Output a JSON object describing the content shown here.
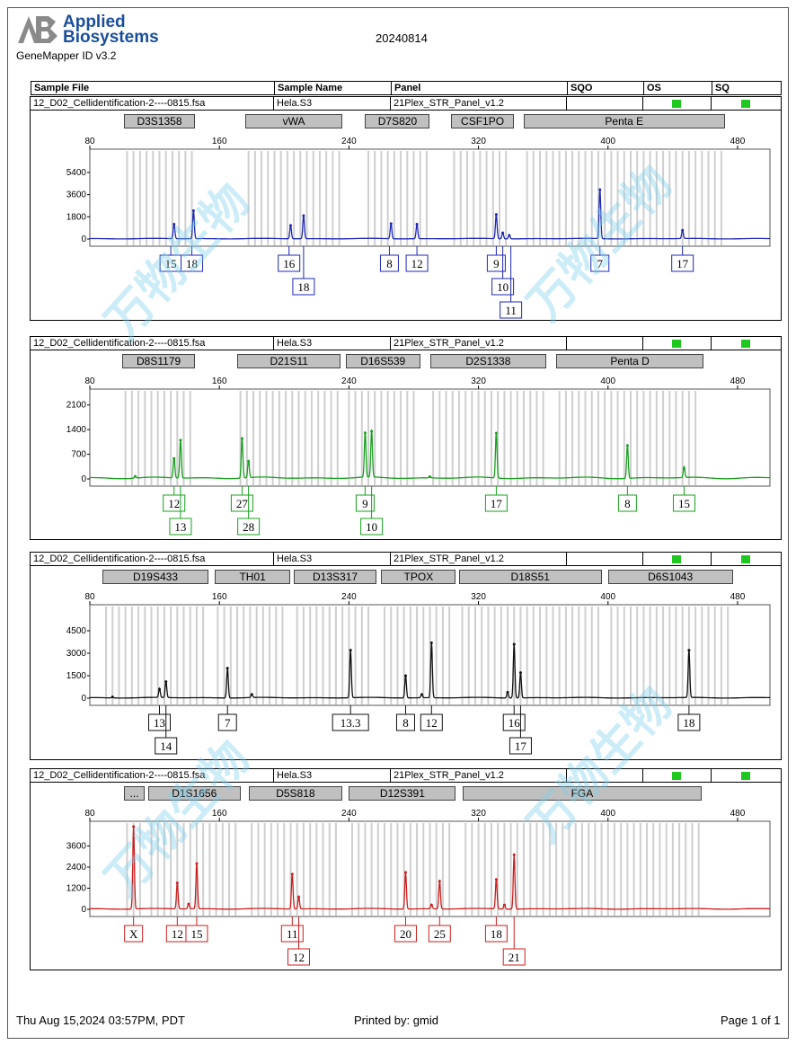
{
  "header": {
    "logo_line1": "Applied",
    "logo_line2": "Biosystems",
    "product": "GeneMapper ID v3.2",
    "date": "20240814"
  },
  "columns": [
    "Sample File",
    "Sample Name",
    "Panel",
    "SQO",
    "OS",
    "SQ"
  ],
  "sample": {
    "file": "12_D02_Cellidentification-2----0815.fsa",
    "name": "Hela.S3",
    "panel": "21Plex_STR_Panel_v1.2"
  },
  "colors": {
    "quality_ok": "#1ec81e",
    "watermark": "#78cdeb"
  },
  "watermark_text": "万物生物",
  "footer": {
    "printed_on": "Thu Aug 15,2024 03:57PM, PDT",
    "printed_by": "Printed by: gmid",
    "page": "Page 1 of 1"
  },
  "chart_data": [
    {
      "type": "line",
      "dye": "blue",
      "color": "#1e28b4",
      "xlim": [
        80,
        500
      ],
      "xticks": [
        80,
        160,
        240,
        320,
        400,
        480
      ],
      "yticks": [
        0,
        1800,
        3600,
        5400
      ],
      "ylim": [
        0,
        7000
      ],
      "markers": [
        {
          "label": "D3S1358",
          "range": [
            101,
            145
          ]
        },
        {
          "label": "vWA",
          "range": [
            176,
            236
          ]
        },
        {
          "label": "D7S820",
          "range": [
            250,
            290
          ]
        },
        {
          "label": "CSF1PO",
          "range": [
            303,
            342
          ]
        },
        {
          "label": "Penta E",
          "range": [
            348,
            472
          ]
        }
      ],
      "peaks": [
        {
          "x": 132,
          "y": 1200
        },
        {
          "x": 144,
          "y": 2300
        },
        {
          "x": 204,
          "y": 1100
        },
        {
          "x": 212,
          "y": 1900
        },
        {
          "x": 266,
          "y": 1250
        },
        {
          "x": 282,
          "y": 1200
        },
        {
          "x": 331,
          "y": 2000
        },
        {
          "x": 335,
          "y": 500
        },
        {
          "x": 339,
          "y": 300
        },
        {
          "x": 395,
          "y": 4000
        },
        {
          "x": 446,
          "y": 700
        }
      ],
      "alleles": [
        {
          "label": "15",
          "x": 130,
          "row": 0
        },
        {
          "label": "18",
          "x": 143,
          "row": 0
        },
        {
          "label": "16",
          "x": 203,
          "row": 0
        },
        {
          "label": "18",
          "x": 212,
          "row": 1
        },
        {
          "label": "8",
          "x": 265,
          "row": 0
        },
        {
          "label": "12",
          "x": 282,
          "row": 0
        },
        {
          "label": "9",
          "x": 331,
          "row": 0
        },
        {
          "label": "10",
          "x": 335,
          "row": 1
        },
        {
          "label": "11",
          "x": 340,
          "row": 2
        },
        {
          "label": "7",
          "x": 395,
          "row": 0
        },
        {
          "label": "17",
          "x": 446,
          "row": 0
        }
      ]
    },
    {
      "type": "line",
      "dye": "green",
      "color": "#18a01e",
      "xlim": [
        80,
        500
      ],
      "xticks": [
        80,
        160,
        240,
        320,
        400,
        480
      ],
      "yticks": [
        0,
        700,
        1400,
        2100
      ],
      "ylim": [
        0,
        2450
      ],
      "markers": [
        {
          "label": "D8S1179",
          "range": [
            100,
            145
          ]
        },
        {
          "label": "D21S11",
          "range": [
            171,
            235
          ]
        },
        {
          "label": "D16S539",
          "range": [
            238,
            284
          ]
        },
        {
          "label": "D2S1338",
          "range": [
            290,
            362
          ]
        },
        {
          "label": "Penta D",
          "range": [
            368,
            459
          ]
        }
      ],
      "peaks": [
        {
          "x": 132,
          "y": 580
        },
        {
          "x": 136,
          "y": 1100
        },
        {
          "x": 108,
          "y": 70
        },
        {
          "x": 174,
          "y": 1150
        },
        {
          "x": 178,
          "y": 500
        },
        {
          "x": 250,
          "y": 1300
        },
        {
          "x": 254,
          "y": 1350
        },
        {
          "x": 290,
          "y": 60
        },
        {
          "x": 331,
          "y": 1300
        },
        {
          "x": 412,
          "y": 950
        },
        {
          "x": 447,
          "y": 300
        }
      ],
      "alleles": [
        {
          "label": "12",
          "x": 132,
          "row": 0
        },
        {
          "label": "13",
          "x": 136,
          "row": 1
        },
        {
          "label": "27",
          "x": 174,
          "row": 0
        },
        {
          "label": "28",
          "x": 178,
          "row": 1
        },
        {
          "label": "9",
          "x": 250,
          "row": 0
        },
        {
          "label": "10",
          "x": 254,
          "row": 1
        },
        {
          "label": "17",
          "x": 331,
          "row": 0
        },
        {
          "label": "8",
          "x": 412,
          "row": 0
        },
        {
          "label": "15",
          "x": 447,
          "row": 0
        }
      ]
    },
    {
      "type": "line",
      "dye": "black",
      "color": "#111111",
      "xlim": [
        80,
        500
      ],
      "xticks": [
        80,
        160,
        240,
        320,
        400,
        480
      ],
      "yticks": [
        0,
        1500,
        3000,
        4500
      ],
      "ylim": [
        0,
        6000
      ],
      "markers": [
        {
          "label": "D19S433",
          "range": [
            88,
            153
          ]
        },
        {
          "label": "TH01",
          "range": [
            157,
            204
          ]
        },
        {
          "label": "D13S317",
          "range": [
            206,
            257
          ]
        },
        {
          "label": "TPOX",
          "range": [
            260,
            306
          ]
        },
        {
          "label": "D18S51",
          "range": [
            308,
            396
          ]
        },
        {
          "label": "D6S1043",
          "range": [
            400,
            477
          ]
        }
      ],
      "peaks": [
        {
          "x": 123,
          "y": 600
        },
        {
          "x": 127,
          "y": 1100
        },
        {
          "x": 94,
          "y": 80
        },
        {
          "x": 180,
          "y": 250
        },
        {
          "x": 165,
          "y": 2000
        },
        {
          "x": 241,
          "y": 3200
        },
        {
          "x": 275,
          "y": 1500
        },
        {
          "x": 291,
          "y": 3700
        },
        {
          "x": 285,
          "y": 250
        },
        {
          "x": 342,
          "y": 3600
        },
        {
          "x": 346,
          "y": 1700
        },
        {
          "x": 338,
          "y": 400
        },
        {
          "x": 450,
          "y": 3200
        }
      ],
      "alleles": [
        {
          "label": "13",
          "x": 123,
          "row": 0
        },
        {
          "label": "14",
          "x": 127,
          "row": 1
        },
        {
          "label": "7",
          "x": 165,
          "row": 0
        },
        {
          "label": "13.3",
          "x": 241,
          "row": 0
        },
        {
          "label": "8",
          "x": 275,
          "row": 0
        },
        {
          "label": "12",
          "x": 291,
          "row": 0
        },
        {
          "label": "16",
          "x": 342,
          "row": 0
        },
        {
          "label": "17",
          "x": 346,
          "row": 1
        },
        {
          "label": "18",
          "x": 450,
          "row": 0
        }
      ]
    },
    {
      "type": "line",
      "dye": "red",
      "color": "#cc1e1e",
      "xlim": [
        80,
        500
      ],
      "xticks": [
        80,
        160,
        240,
        320,
        400,
        480
      ],
      "yticks": [
        0,
        1200,
        2400,
        3600
      ],
      "ylim": [
        0,
        4800
      ],
      "markers": [
        {
          "label": "...",
          "range": [
            101,
            114
          ]
        },
        {
          "label": "D1S1656",
          "range": [
            116,
            173
          ]
        },
        {
          "label": "D5S818",
          "range": [
            178,
            236
          ]
        },
        {
          "label": "D12S391",
          "range": [
            240,
            306
          ]
        },
        {
          "label": "FGA",
          "range": [
            310,
            458
          ]
        }
      ],
      "peaks": [
        {
          "x": 107,
          "y": 4700
        },
        {
          "x": 134,
          "y": 1500
        },
        {
          "x": 146,
          "y": 2600
        },
        {
          "x": 141,
          "y": 300
        },
        {
          "x": 205,
          "y": 2000
        },
        {
          "x": 209,
          "y": 700
        },
        {
          "x": 275,
          "y": 2100
        },
        {
          "x": 296,
          "y": 1600
        },
        {
          "x": 291,
          "y": 250
        },
        {
          "x": 331,
          "y": 1700
        },
        {
          "x": 342,
          "y": 3100
        },
        {
          "x": 336,
          "y": 250
        }
      ],
      "alleles": [
        {
          "label": "X",
          "x": 107,
          "row": 0
        },
        {
          "label": "12",
          "x": 134,
          "row": 0
        },
        {
          "label": "15",
          "x": 146,
          "row": 0
        },
        {
          "label": "11",
          "x": 205,
          "row": 0
        },
        {
          "label": "12",
          "x": 209,
          "row": 1
        },
        {
          "label": "20",
          "x": 275,
          "row": 0
        },
        {
          "label": "25",
          "x": 296,
          "row": 0
        },
        {
          "label": "18",
          "x": 331,
          "row": 0
        },
        {
          "label": "21",
          "x": 342,
          "row": 1
        }
      ]
    }
  ]
}
